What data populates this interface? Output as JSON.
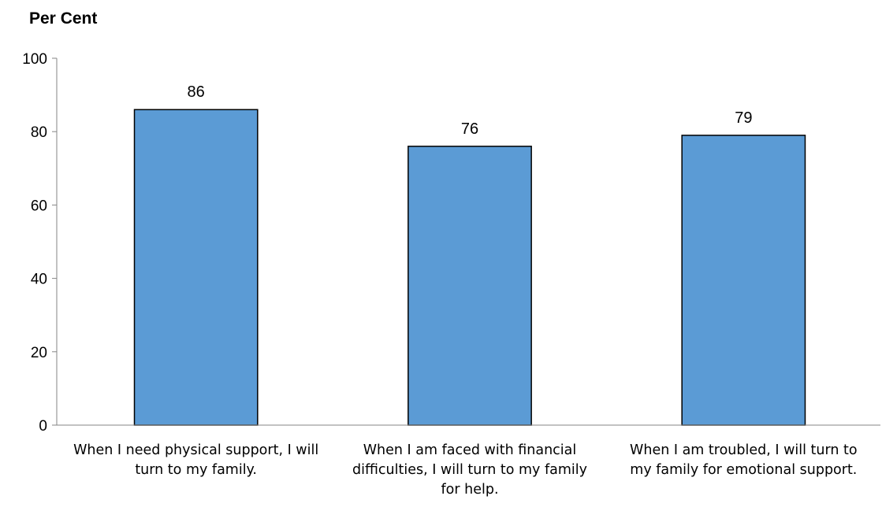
{
  "chart_data": {
    "type": "bar",
    "ylabel": "Per Cent",
    "xlabel": "",
    "ylim": [
      0,
      100
    ],
    "yticks": [
      0,
      20,
      40,
      60,
      80,
      100
    ],
    "grid": false,
    "bar_color": "#5b9bd5",
    "bar_edge_color": "#000000",
    "categories": [
      [
        "When I need physical support, I will",
        "turn to my family."
      ],
      [
        "When I am faced with financial",
        "difficulties, I will turn to my family",
        "for help."
      ],
      [
        "When I am troubled, I will turn to",
        "my family for emotional support."
      ]
    ],
    "values": [
      86,
      76,
      79
    ]
  }
}
